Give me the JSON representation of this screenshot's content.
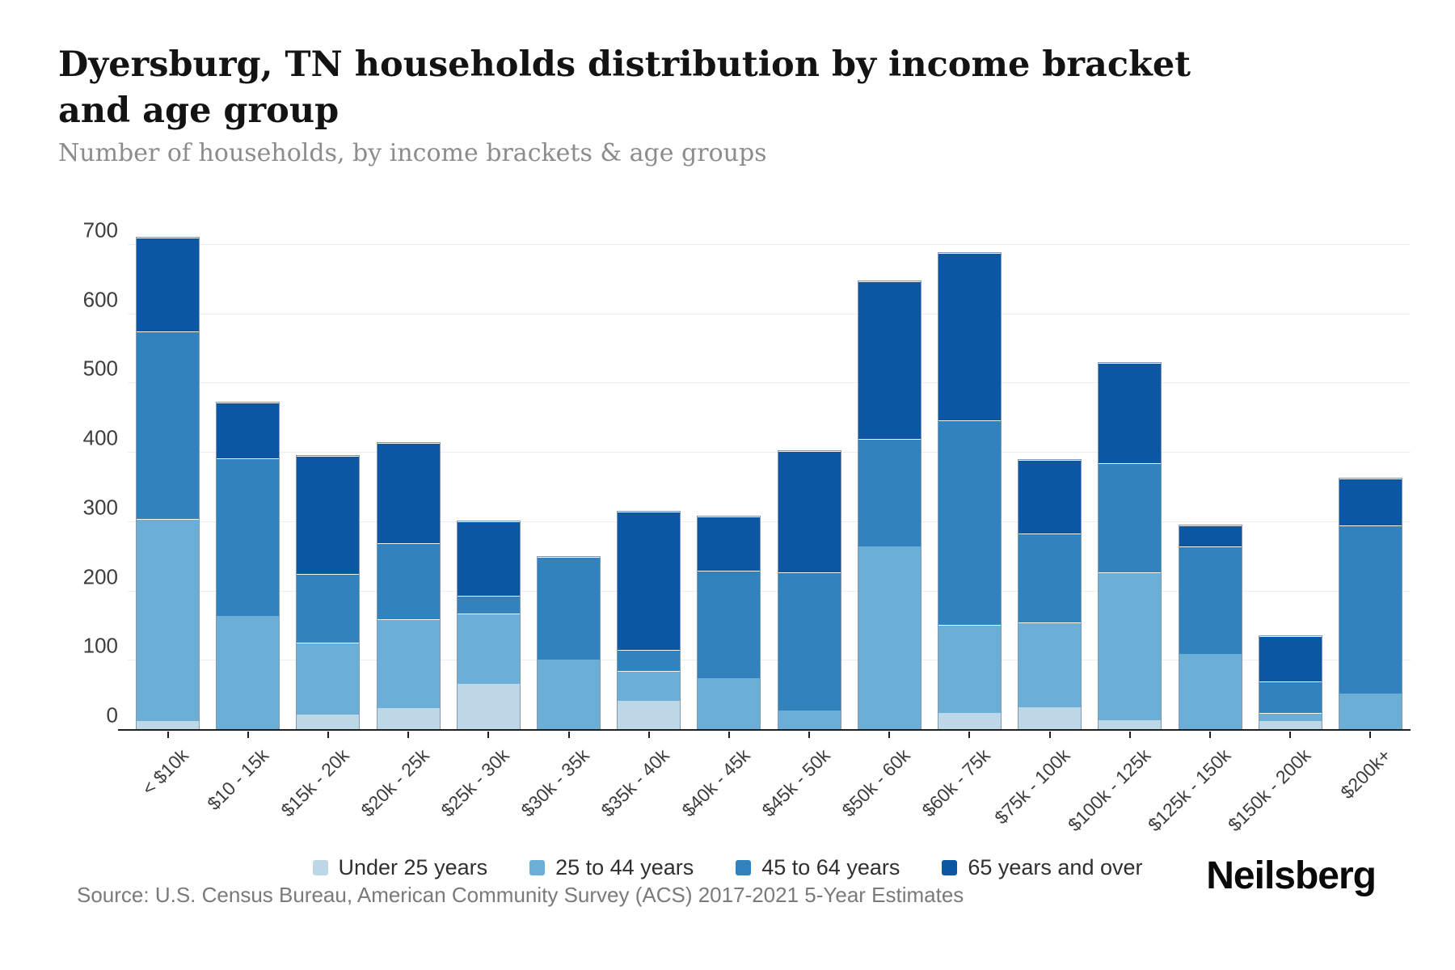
{
  "header": {
    "title": "Dyersburg, TN households distribution by income bracket and age group",
    "subtitle": "Number of households, by income brackets & age groups"
  },
  "chart_data": {
    "type": "bar",
    "stacked": true,
    "title": "Dyersburg, TN households distribution by income bracket and age group",
    "xlabel": "",
    "ylabel": "",
    "ylim": [
      0,
      700
    ],
    "yticks": [
      0,
      100,
      200,
      300,
      400,
      500,
      600,
      700
    ],
    "grid": "horizontal",
    "legend_position": "bottom",
    "categories": [
      "< $10k",
      "$10 - 15k",
      "$15k - 20k",
      "$20k - 25k",
      "$25k - 30k",
      "$30k - 35k",
      "$35k - 40k",
      "$40k - 45k",
      "$45k - 50k",
      "$50k - 60k",
      "$60k - 75k",
      "$75k - 100k",
      "$100k - 125k",
      "$125k - 150k",
      "$150k - 200k",
      "$200k+"
    ],
    "series": [
      {
        "name": "Under 25 years",
        "color": "#bdd7e7",
        "values": [
          13,
          0,
          22,
          31,
          67,
          0,
          42,
          0,
          0,
          0,
          25,
          33,
          14,
          0,
          13,
          0
        ]
      },
      {
        "name": "25 to 44 years",
        "color": "#6baed6",
        "values": [
          292,
          165,
          104,
          129,
          101,
          102,
          43,
          75,
          28,
          265,
          127,
          122,
          214,
          110,
          12,
          53
        ]
      },
      {
        "name": "45 to 64 years",
        "color": "#3182bd",
        "values": [
          270,
          227,
          99,
          110,
          26,
          148,
          30,
          155,
          200,
          155,
          295,
          128,
          157,
          155,
          45,
          242
        ]
      },
      {
        "name": "65 years and over",
        "color": "#0b57a4",
        "values": [
          135,
          81,
          170,
          144,
          107,
          0,
          200,
          78,
          174,
          227,
          241,
          107,
          145,
          30,
          65,
          68
        ]
      }
    ],
    "totals": [
      710,
      473,
      395,
      414,
      301,
      250,
      315,
      308,
      402,
      647,
      688,
      390,
      530,
      295,
      135,
      363
    ]
  },
  "footer": {
    "source": "Source: U.S. Census Bureau, American Community Survey (ACS) 2017-2021 5-Year Estimates",
    "brand": "Neilsberg"
  }
}
